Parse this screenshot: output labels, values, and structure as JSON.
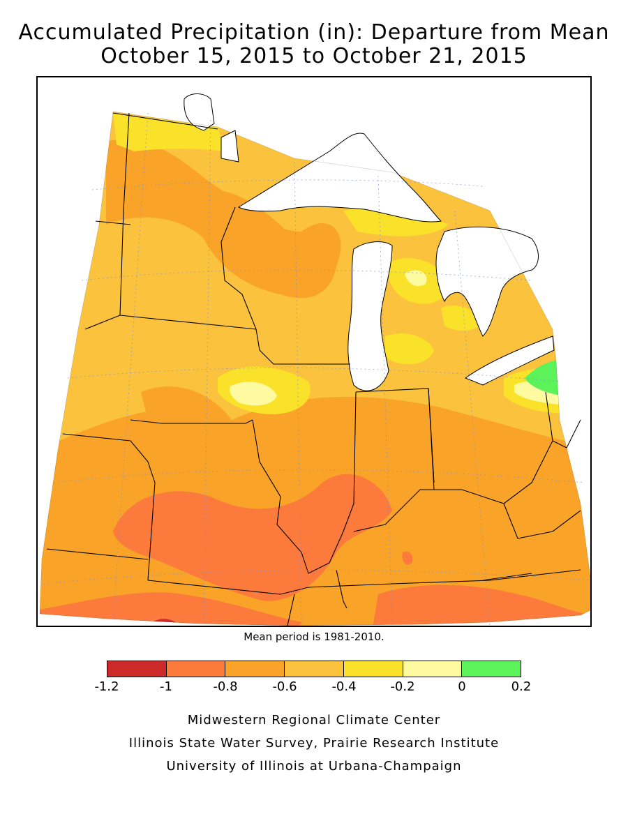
{
  "title_line1": "Accumulated Precipitation (in): Departure from Mean",
  "title_line2": "October 15, 2015 to October 21, 2015",
  "note": "Mean period is 1981-2010.",
  "legend": {
    "ticks": [
      "-1.2",
      "-1",
      "-0.8",
      "-0.6",
      "-0.4",
      "-0.2",
      "0",
      "0.2"
    ],
    "bins": [
      {
        "range": [
          -1.2,
          -1.0
        ],
        "color": "#cc2a2a"
      },
      {
        "range": [
          -1.0,
          -0.8
        ],
        "color": "#fb7a3c"
      },
      {
        "range": [
          -0.8,
          -0.6
        ],
        "color": "#f9a428"
      },
      {
        "range": [
          -0.6,
          -0.4
        ],
        "color": "#fbc23e"
      },
      {
        "range": [
          -0.4,
          -0.2
        ],
        "color": "#fbe22a"
      },
      {
        "range": [
          -0.2,
          0.0
        ],
        "color": "#fefaa0"
      },
      {
        "range": [
          0.0,
          0.2
        ],
        "color": "#5cf25a"
      }
    ]
  },
  "credits": [
    "Midwestern Regional Climate Center",
    "Illinois State Water Survey, Prairie Research Institute",
    "University of Illinois at Urbana-Champaign"
  ],
  "map": {
    "region": "Midwest United States",
    "variable": "Accumulated precipitation departure from mean (in)",
    "colors": {
      "extreme_dry": "#cc2a2a",
      "very_dry": "#fb7a3c",
      "dry": "#f9a428",
      "moderate": "#fbc23e",
      "slight": "#fbe22a",
      "near_normal": "#fefaa0",
      "wet": "#5cf25a",
      "water": "#ffffff"
    }
  }
}
